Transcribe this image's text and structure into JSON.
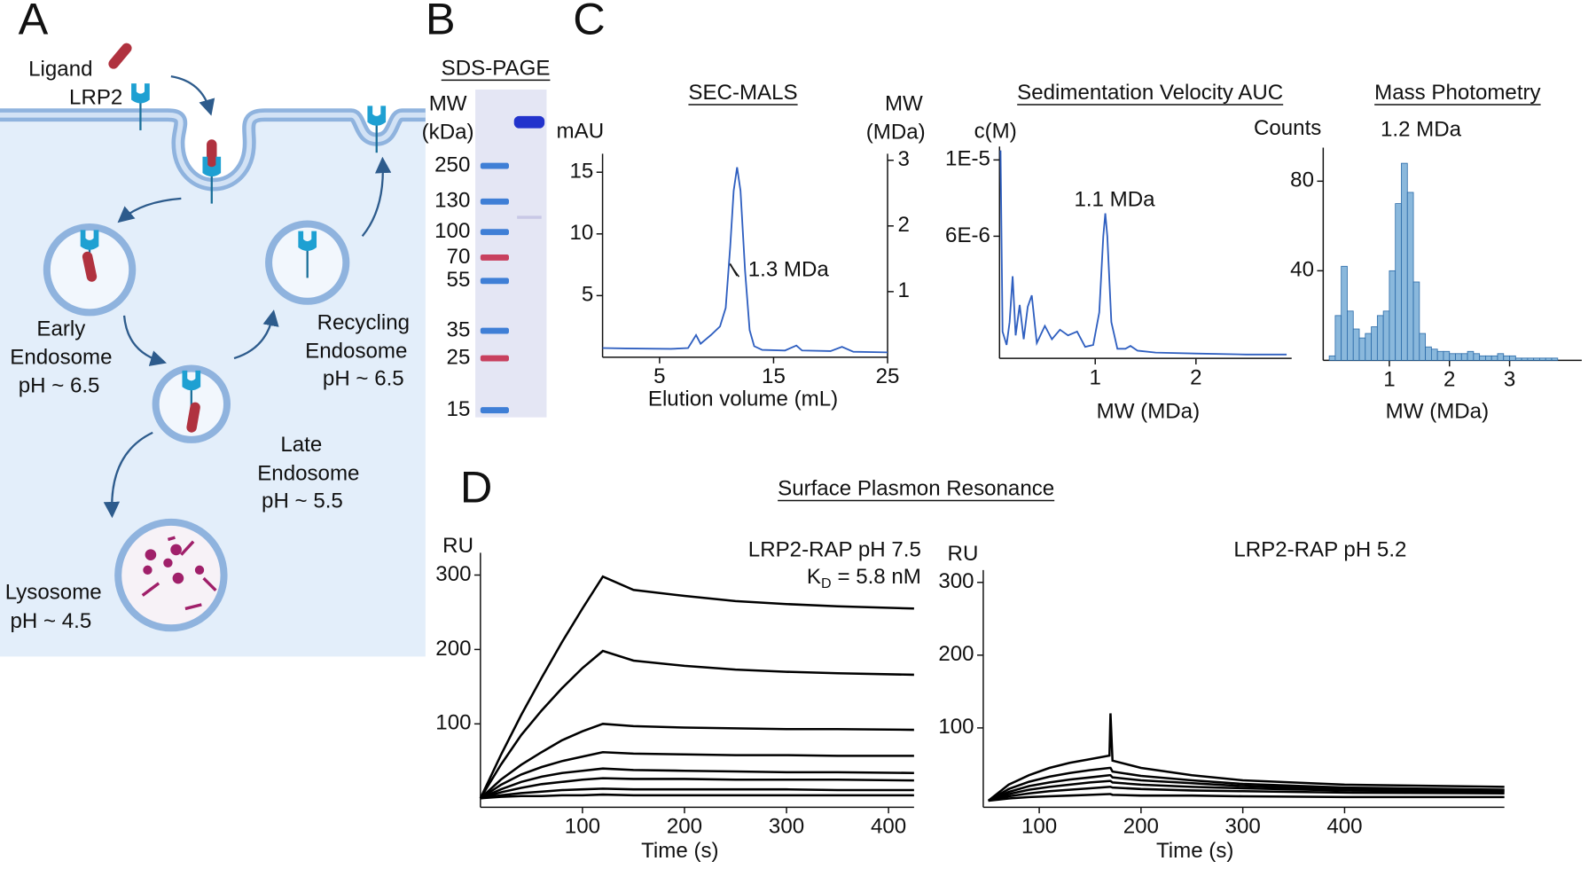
{
  "labels": [
    "A",
    "B",
    "C",
    "D"
  ],
  "diagram": {
    "ligand": "Ligand",
    "receptor": "LRP2",
    "early": [
      "Early",
      "Endosome",
      "pH ~ 6.5"
    ],
    "recycling": [
      "Recycling",
      "Endosome",
      "pH ~ 6.5"
    ],
    "late": [
      "Late",
      "Endosome",
      "pH ~ 5.5"
    ],
    "lysosome": [
      "Lysosome",
      "pH ~ 4.5"
    ]
  },
  "gel": {
    "title": "SDS-PAGE",
    "mw_label": [
      "MW",
      "(kDa)"
    ],
    "ladder": [
      250,
      130,
      100,
      70,
      55,
      35,
      25,
      15
    ]
  },
  "panel_d": {
    "title": "Surface Plasmon Resonance"
  },
  "chart_data": [
    {
      "type": "line",
      "title": "SEC-MALS",
      "y_label": "mAU",
      "y2_label": [
        "MW",
        "(MDa)"
      ],
      "x_label": "Elution volume (mL)",
      "xlim": [
        0,
        25
      ],
      "ylim": [
        0,
        16.5
      ],
      "y2lim": [
        0,
        3.1
      ],
      "xticks": [
        5,
        15,
        25
      ],
      "yticks": [
        5,
        10,
        15
      ],
      "y2ticks": [
        1,
        2,
        3
      ],
      "x": [
        0,
        2,
        4,
        6,
        7.5,
        8.2,
        8.6,
        9.5,
        10.3,
        10.8,
        11.2,
        11.5,
        11.8,
        12.1,
        12.5,
        12.9,
        13.3,
        14,
        16,
        17,
        17.5,
        20,
        21,
        22,
        25
      ],
      "series": [
        {
          "color": "#2f5fc0",
          "values": [
            0.75,
            0.72,
            0.7,
            0.68,
            0.75,
            1.8,
            1.1,
            1.8,
            2.5,
            4,
            9,
            13.5,
            15.4,
            13.5,
            7,
            2.2,
            0.9,
            0.6,
            0.55,
            0.95,
            0.55,
            0.5,
            0.85,
            0.45,
            0.4
          ]
        },
        {
          "color": "#1a1a1a",
          "axis": "y2",
          "x": [
            11.2,
            11.5,
            11.8
          ],
          "values": [
            1.42,
            1.33,
            1.24
          ]
        }
      ],
      "annotations": [
        "1.3 MDa"
      ]
    },
    {
      "type": "line",
      "title": "Sedimentation Velocity AUC",
      "y_label": "c(M)",
      "x_label": "MW (MDa)",
      "xlim": [
        0.05,
        2.95
      ],
      "ylim": [
        -4e-07,
        1.07e-05
      ],
      "xticks": [
        1,
        2
      ],
      "yticks": [
        {
          "value": 1e-05,
          "label": "1E-5"
        },
        {
          "value": 6e-06,
          "label": "6E-6"
        }
      ],
      "x": [
        0.06,
        0.08,
        0.12,
        0.15,
        0.18,
        0.21,
        0.25,
        0.29,
        0.33,
        0.37,
        0.42,
        0.5,
        0.57,
        0.65,
        0.73,
        0.82,
        0.9,
        0.98,
        1.04,
        1.08,
        1.1,
        1.12,
        1.16,
        1.22,
        1.3,
        1.35,
        1.42,
        1.6,
        2.0,
        2.5,
        2.9
      ],
      "series": [
        {
          "color": "#2f5fc0",
          "values": [
            1.05e-05,
            1e-06,
            3e-07,
            1.5e-06,
            3.9e-06,
            8e-07,
            2.4e-06,
            6e-07,
            2.3e-06,
            2.9e-06,
            4e-07,
            1.3e-06,
            6e-07,
            1.1e-06,
            8e-07,
            1e-06,
            2e-07,
            3e-07,
            2e-06,
            6e-06,
            7.2e-06,
            6e-06,
            1.5e-06,
            1e-07,
            1e-07,
            2.5e-07,
            0,
            -1e-07,
            -1.5e-07,
            -2e-07,
            -2e-07
          ]
        }
      ],
      "annotations": [
        "1.1 MDa"
      ]
    },
    {
      "type": "histogram",
      "title": "Mass Photometry",
      "y_label": "Counts",
      "x_label": "MW (MDa)",
      "color": "#8ab8dc",
      "xlim": [
        -0.1,
        4.2
      ],
      "ylim": [
        0,
        95
      ],
      "xticks": [
        1,
        2,
        3
      ],
      "yticks": [
        40,
        80
      ],
      "bins": [
        0,
        0.1,
        0.2,
        0.3,
        0.4,
        0.5,
        0.6,
        0.7,
        0.8,
        0.9,
        1.0,
        1.1,
        1.2,
        1.3,
        1.4,
        1.5,
        1.6,
        1.7,
        1.8,
        1.9,
        2.0,
        2.1,
        2.2,
        2.3,
        2.4,
        2.5,
        2.6,
        2.7,
        2.8,
        2.9,
        3.0,
        3.1,
        3.2,
        3.3,
        3.4,
        3.5,
        3.6,
        3.7,
        3.8,
        3.9,
        4.0
      ],
      "counts": [
        2,
        20,
        42,
        22,
        14,
        10,
        12,
        15,
        20,
        22,
        40,
        70,
        88,
        75,
        35,
        12,
        6,
        5,
        4,
        4,
        3,
        3,
        3,
        4,
        3,
        2,
        2,
        2,
        3,
        2,
        2,
        1,
        1,
        1,
        1,
        1,
        1,
        1,
        0,
        0
      ],
      "annotations": [
        "1.2 MDa"
      ]
    },
    {
      "type": "line",
      "y_label": "RU",
      "x_label": "Time (s)",
      "xlim": [
        0,
        425
      ],
      "ylim": [
        -12,
        330
      ],
      "xticks": [
        100,
        200,
        300,
        400
      ],
      "yticks": [
        100,
        200,
        300
      ],
      "x": [
        0,
        20,
        40,
        60,
        80,
        100,
        120,
        150,
        200,
        250,
        300,
        350,
        425
      ],
      "series": [
        {
          "color": "#000000",
          "values": [
            0,
            58,
            112,
            162,
            210,
            255,
            298,
            280,
            272,
            265,
            261,
            258,
            255
          ]
        },
        {
          "color": "#000000",
          "values": [
            0,
            45,
            85,
            118,
            148,
            175,
            198,
            185,
            178,
            173,
            170,
            168,
            166
          ]
        },
        {
          "color": "#000000",
          "values": [
            0,
            25,
            45,
            62,
            78,
            90,
            100,
            97,
            95,
            94,
            93,
            93,
            92
          ]
        },
        {
          "color": "#000000",
          "values": [
            0,
            18,
            32,
            42,
            50,
            56,
            62,
            60,
            59,
            58,
            58,
            57,
            57
          ]
        },
        {
          "color": "#000000",
          "values": [
            0,
            12,
            22,
            29,
            34,
            37,
            40,
            38,
            37,
            36,
            35,
            35,
            34
          ]
        },
        {
          "color": "#000000",
          "values": [
            0,
            8,
            14,
            19,
            22,
            25,
            27,
            26,
            26,
            25,
            25,
            25,
            24
          ]
        },
        {
          "color": "#000000",
          "values": [
            0,
            4,
            7,
            9,
            11,
            12,
            13,
            12,
            12,
            12,
            12,
            11,
            11
          ]
        },
        {
          "color": "#000000",
          "values": [
            0,
            2,
            3,
            3,
            4,
            4,
            5,
            4,
            4,
            4,
            4,
            4,
            4
          ]
        }
      ],
      "annotations": [
        "LRP2-RAP pH 7.5"
      ],
      "kd": {
        "symbol": "K",
        "subscript": "D",
        "text": "= 5.8 nM"
      }
    },
    {
      "type": "line",
      "y_label": "RU",
      "x_label": "Time (s)",
      "xlim": [
        45,
        557
      ],
      "ylim": [
        -9,
        317
      ],
      "xticks": [
        100,
        200,
        300,
        400
      ],
      "yticks": [
        100,
        200,
        300
      ],
      "x": [
        50,
        70,
        90,
        110,
        130,
        150,
        169,
        170,
        172,
        200,
        250,
        300,
        400,
        557
      ],
      "series": [
        {
          "color": "#000000",
          "values": [
            0,
            22,
            35,
            45,
            52,
            57,
            62,
            120,
            55,
            45,
            35,
            28,
            22,
            19
          ]
        },
        {
          "color": "#000000",
          "values": [
            0,
            16,
            26,
            33,
            38,
            42,
            45,
            45,
            40,
            34,
            28,
            23,
            18,
            15
          ]
        },
        {
          "color": "#000000",
          "values": [
            0,
            12,
            20,
            25,
            29,
            32,
            35,
            35,
            32,
            28,
            24,
            20,
            16,
            14
          ]
        },
        {
          "color": "#000000",
          "values": [
            0,
            9,
            15,
            19,
            22,
            25,
            27,
            27,
            25,
            22,
            19,
            17,
            14,
            12
          ]
        },
        {
          "color": "#000000",
          "values": [
            0,
            6,
            10,
            13,
            15,
            17,
            19,
            19,
            18,
            16,
            14,
            13,
            11,
            10
          ]
        },
        {
          "color": "#000000",
          "values": [
            0,
            3,
            5,
            6,
            7,
            8,
            9,
            9,
            8,
            7,
            7,
            6,
            5,
            5
          ]
        }
      ],
      "annotations": [
        "LRP2-RAP pH 5.2"
      ]
    }
  ]
}
